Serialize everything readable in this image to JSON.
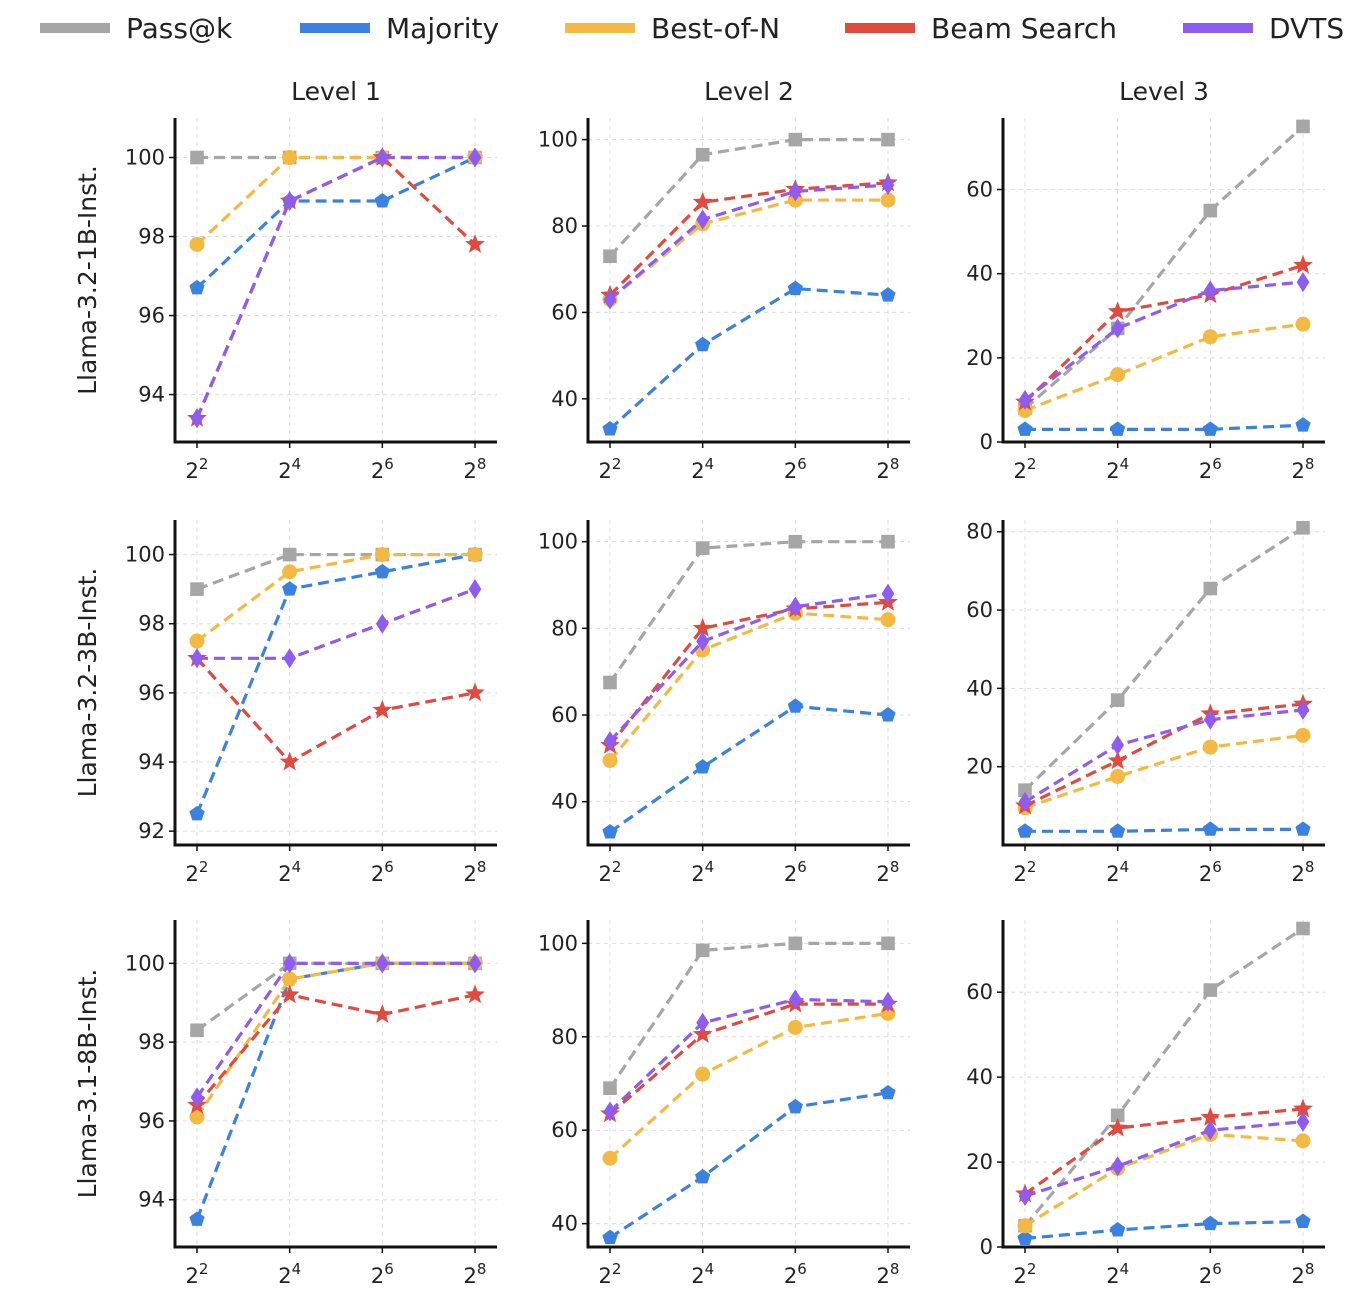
{
  "legend": {
    "items": [
      {
        "label": "Pass@k",
        "color": "#a6a6a6"
      },
      {
        "label": "Majority",
        "color": "#3b82e0"
      },
      {
        "label": "Best-of-N",
        "color": "#f4b942"
      },
      {
        "label": "Beam Search",
        "color": "#e04a3f"
      },
      {
        "label": "DVTS",
        "color": "#8e5cf0"
      }
    ]
  },
  "column_titles": [
    "Level 1",
    "Level 2",
    "Level 3"
  ],
  "row_labels": [
    "Llama-3.2-1B-Inst.",
    "Llama-3.2-3B-Inst.",
    "Llama-3.1-8B-Inst."
  ],
  "chart_data": [
    {
      "type": "line",
      "row": 0,
      "col": 0,
      "title": "Level 1",
      "ylabel": "Llama-3.2-1B-Inst.",
      "x": [
        2,
        4,
        6,
        8
      ],
      "xticks": [
        "2^2",
        "2^4",
        "2^6",
        "2^8"
      ],
      "ylim": [
        92.8,
        101
      ],
      "yticks": [
        94,
        96,
        98,
        100
      ],
      "grid": true,
      "series": [
        {
          "name": "Pass@k",
          "values": [
            100,
            100,
            100,
            100
          ]
        },
        {
          "name": "Majority",
          "values": [
            96.7,
            98.9,
            98.9,
            100
          ]
        },
        {
          "name": "Best-of-N",
          "values": [
            97.8,
            100,
            100,
            100
          ]
        },
        {
          "name": "Beam Search",
          "values": [
            93.4,
            98.9,
            100,
            97.8
          ]
        },
        {
          "name": "DVTS",
          "values": [
            93.4,
            98.9,
            100,
            100
          ]
        }
      ]
    },
    {
      "type": "line",
      "row": 0,
      "col": 1,
      "title": "Level 2",
      "x": [
        2,
        4,
        6,
        8
      ],
      "xticks": [
        "2^2",
        "2^4",
        "2^6",
        "2^8"
      ],
      "ylim": [
        30,
        105
      ],
      "yticks": [
        40,
        60,
        80,
        100
      ],
      "grid": true,
      "series": [
        {
          "name": "Pass@k",
          "values": [
            73,
            96.5,
            100,
            100
          ]
        },
        {
          "name": "Majority",
          "values": [
            33,
            52.5,
            65.5,
            64
          ]
        },
        {
          "name": "Best-of-N",
          "values": [
            63,
            80.5,
            86,
            86
          ]
        },
        {
          "name": "Beam Search",
          "values": [
            64,
            85.5,
            88.5,
            90
          ]
        },
        {
          "name": "DVTS",
          "values": [
            63,
            81.5,
            88,
            89.5
          ]
        }
      ]
    },
    {
      "type": "line",
      "row": 0,
      "col": 2,
      "title": "Level 3",
      "x": [
        2,
        4,
        6,
        8
      ],
      "xticks": [
        "2^2",
        "2^4",
        "2^6",
        "2^8"
      ],
      "ylim": [
        0,
        77
      ],
      "yticks": [
        0,
        20,
        40,
        60
      ],
      "grid": true,
      "series": [
        {
          "name": "Pass@k",
          "values": [
            8,
            27,
            55,
            75
          ]
        },
        {
          "name": "Majority",
          "values": [
            3,
            3,
            3,
            4
          ]
        },
        {
          "name": "Best-of-N",
          "values": [
            7.5,
            16,
            25,
            28
          ]
        },
        {
          "name": "Beam Search",
          "values": [
            9.5,
            31,
            35,
            42
          ]
        },
        {
          "name": "DVTS",
          "values": [
            10,
            27,
            36,
            38
          ]
        }
      ]
    },
    {
      "type": "line",
      "row": 1,
      "col": 0,
      "ylabel": "Llama-3.2-3B-Inst.",
      "x": [
        2,
        4,
        6,
        8
      ],
      "xticks": [
        "2^2",
        "2^4",
        "2^6",
        "2^8"
      ],
      "ylim": [
        91.6,
        101
      ],
      "yticks": [
        92,
        94,
        96,
        98,
        100
      ],
      "grid": true,
      "series": [
        {
          "name": "Pass@k",
          "values": [
            99,
            100,
            100,
            100
          ]
        },
        {
          "name": "Majority",
          "values": [
            92.5,
            99,
            99.5,
            100
          ]
        },
        {
          "name": "Best-of-N",
          "values": [
            97.5,
            99.5,
            100,
            100
          ]
        },
        {
          "name": "Beam Search",
          "values": [
            97,
            94,
            95.5,
            96
          ]
        },
        {
          "name": "DVTS",
          "values": [
            97,
            97,
            98,
            99
          ]
        }
      ]
    },
    {
      "type": "line",
      "row": 1,
      "col": 1,
      "x": [
        2,
        4,
        6,
        8
      ],
      "xticks": [
        "2^2",
        "2^4",
        "2^6",
        "2^8"
      ],
      "ylim": [
        30,
        105
      ],
      "yticks": [
        40,
        60,
        80,
        100
      ],
      "grid": true,
      "series": [
        {
          "name": "Pass@k",
          "values": [
            67.5,
            98.5,
            100,
            100
          ]
        },
        {
          "name": "Majority",
          "values": [
            33,
            48,
            62,
            60
          ]
        },
        {
          "name": "Best-of-N",
          "values": [
            49.5,
            75,
            83.5,
            82
          ]
        },
        {
          "name": "Beam Search",
          "values": [
            53,
            80,
            84.5,
            86
          ]
        },
        {
          "name": "DVTS",
          "values": [
            54,
            77,
            85,
            88
          ]
        }
      ]
    },
    {
      "type": "line",
      "row": 1,
      "col": 2,
      "x": [
        2,
        4,
        6,
        8
      ],
      "xticks": [
        "2^2",
        "2^4",
        "2^6",
        "2^8"
      ],
      "ylim": [
        0,
        83
      ],
      "yticks": [
        20,
        40,
        60,
        80
      ],
      "grid": true,
      "series": [
        {
          "name": "Pass@k",
          "values": [
            14,
            37,
            65.5,
            81
          ]
        },
        {
          "name": "Majority",
          "values": [
            3.5,
            3.5,
            4,
            4
          ]
        },
        {
          "name": "Best-of-N",
          "values": [
            9.5,
            17.5,
            25,
            28
          ]
        },
        {
          "name": "Beam Search",
          "values": [
            10,
            21.5,
            33.5,
            36
          ]
        },
        {
          "name": "DVTS",
          "values": [
            11,
            25.5,
            32,
            34.5
          ]
        }
      ]
    },
    {
      "type": "line",
      "row": 2,
      "col": 0,
      "ylabel": "Llama-3.1-8B-Inst.",
      "x": [
        2,
        4,
        6,
        8
      ],
      "xticks": [
        "2^2",
        "2^4",
        "2^6",
        "2^8"
      ],
      "ylim": [
        92.8,
        101.1
      ],
      "yticks": [
        94,
        96,
        98,
        100
      ],
      "grid": true,
      "series": [
        {
          "name": "Pass@k",
          "values": [
            98.3,
            100,
            100,
            100
          ]
        },
        {
          "name": "Majority",
          "values": [
            93.5,
            99.6,
            100,
            100
          ]
        },
        {
          "name": "Best-of-N",
          "values": [
            96.1,
            99.6,
            100,
            100
          ]
        },
        {
          "name": "Beam Search",
          "values": [
            96.4,
            99.2,
            98.7,
            99.2
          ]
        },
        {
          "name": "DVTS",
          "values": [
            96.6,
            100,
            100,
            100
          ]
        }
      ]
    },
    {
      "type": "line",
      "row": 2,
      "col": 1,
      "x": [
        2,
        4,
        6,
        8
      ],
      "xticks": [
        "2^2",
        "2^4",
        "2^6",
        "2^8"
      ],
      "ylim": [
        35,
        105
      ],
      "yticks": [
        40,
        60,
        80,
        100
      ],
      "grid": true,
      "series": [
        {
          "name": "Pass@k",
          "values": [
            69,
            98.5,
            100,
            100
          ]
        },
        {
          "name": "Majority",
          "values": [
            37,
            50,
            65,
            68
          ]
        },
        {
          "name": "Best-of-N",
          "values": [
            54,
            72,
            82,
            85
          ]
        },
        {
          "name": "Beam Search",
          "values": [
            63.5,
            80.5,
            87,
            87
          ]
        },
        {
          "name": "DVTS",
          "values": [
            64,
            83,
            88,
            87.5
          ]
        }
      ]
    },
    {
      "type": "line",
      "row": 2,
      "col": 2,
      "x": [
        2,
        4,
        6,
        8
      ],
      "xticks": [
        "2^2",
        "2^4",
        "2^6",
        "2^8"
      ],
      "ylim": [
        0,
        77
      ],
      "yticks": [
        0,
        20,
        40,
        60
      ],
      "grid": true,
      "series": [
        {
          "name": "Pass@k",
          "values": [
            5,
            31,
            60.5,
            75
          ]
        },
        {
          "name": "Majority",
          "values": [
            2,
            4,
            5.5,
            6
          ]
        },
        {
          "name": "Best-of-N",
          "values": [
            5,
            18.5,
            26.5,
            25
          ]
        },
        {
          "name": "Beam Search",
          "values": [
            12.5,
            28,
            30.5,
            32.5
          ]
        },
        {
          "name": "DVTS",
          "values": [
            12,
            19,
            27.5,
            29.5
          ]
        }
      ]
    }
  ]
}
